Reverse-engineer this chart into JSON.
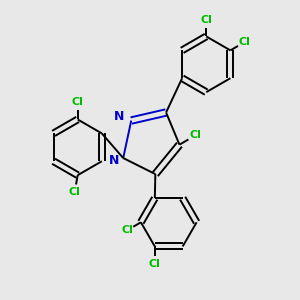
{
  "bg_color": "#e8e8e8",
  "bond_color": "#000000",
  "cl_color": "#00bb00",
  "n_color": "#0000cc",
  "line_width": 1.4,
  "figsize": [
    3.0,
    3.0
  ],
  "dpi": 100,
  "xlim": [
    -2.8,
    2.8
  ],
  "ylim": [
    -2.8,
    2.8
  ]
}
